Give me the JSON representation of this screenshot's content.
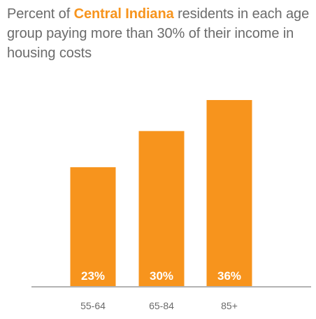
{
  "title": {
    "before": "Percent of ",
    "highlight": "Central Indiana",
    "after": " residents in each age group paying more than 30% of their income in housing costs"
  },
  "colors": {
    "bar": "#f7941d",
    "highlight": "#f7941d",
    "text": "#6b6b6b",
    "baseline": "#9a9a9a",
    "value_label": "#ffffff"
  },
  "chart_data": {
    "type": "bar",
    "categories": [
      "55-64",
      "65-84",
      "85+"
    ],
    "values": [
      23,
      30,
      36
    ],
    "value_labels": [
      "23%",
      "30%",
      "36%"
    ],
    "title": "Percent of Central Indiana residents in each age group paying more than 30% of their income in housing costs",
    "xlabel": "",
    "ylabel": "",
    "ylim": [
      0,
      36
    ],
    "grid": false,
    "legend": "none"
  }
}
